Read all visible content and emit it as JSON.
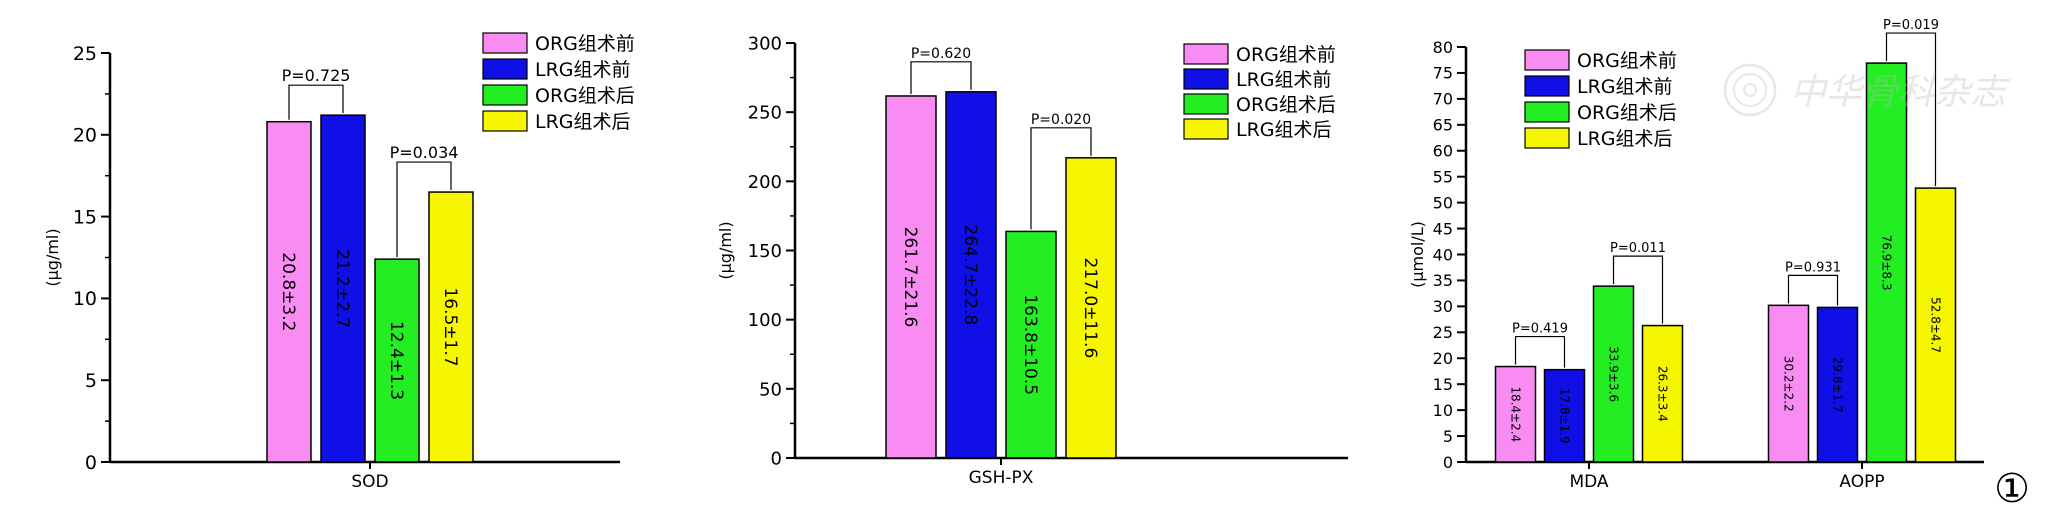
{
  "figure_label": "①",
  "watermark_text": "中华骨科杂志",
  "colors": {
    "ORG_pre": "#f98cf3",
    "LRG_pre": "#1010e6",
    "ORG_post": "#22ee22",
    "LRG_post": "#f6f600"
  },
  "chart_data": [
    {
      "type": "bar",
      "ylabel": "(μg/ml)",
      "ylim": [
        0,
        25
      ],
      "yticks": [
        0,
        5,
        10,
        15,
        20,
        25
      ],
      "categories": [
        "SOD"
      ],
      "legend": [
        "ORG组术前",
        "LRG组术前",
        "ORG组术后",
        "LRG组术后"
      ],
      "legend_position": "top-right",
      "series": [
        {
          "name": "ORG组术前",
          "values": [
            20.8
          ],
          "labels": [
            "20.8±3.2"
          ]
        },
        {
          "name": "LRG组术前",
          "values": [
            21.2
          ],
          "labels": [
            "21.2±2.7"
          ]
        },
        {
          "name": "ORG组术后",
          "values": [
            12.4
          ],
          "labels": [
            "12.4±1.3"
          ]
        },
        {
          "name": "LRG组术后",
          "values": [
            16.5
          ],
          "labels": [
            "16.5±1.7"
          ]
        }
      ],
      "comparisons": [
        {
          "category": 0,
          "from": 0,
          "to": 1,
          "label": "P=0.725"
        },
        {
          "category": 0,
          "from": 2,
          "to": 3,
          "label": "P=0.034"
        }
      ]
    },
    {
      "type": "bar",
      "ylabel": "(μg/ml)",
      "ylim": [
        0,
        300
      ],
      "yticks": [
        0,
        50,
        100,
        150,
        200,
        250,
        300
      ],
      "categories": [
        "GSH-PX"
      ],
      "legend": [
        "ORG组术前",
        "LRG组术前",
        "ORG组术后",
        "LRG组术后"
      ],
      "legend_position": "top-right",
      "series": [
        {
          "name": "ORG组术前",
          "values": [
            261.7
          ],
          "labels": [
            "261.7±21.6"
          ]
        },
        {
          "name": "LRG组术前",
          "values": [
            264.7
          ],
          "labels": [
            "264.7±22.8"
          ]
        },
        {
          "name": "ORG组术后",
          "values": [
            163.8
          ],
          "labels": [
            "163.8±10.5"
          ]
        },
        {
          "name": "LRG组术后",
          "values": [
            217.0
          ],
          "labels": [
            "217.0±11.6"
          ]
        }
      ],
      "comparisons": [
        {
          "category": 0,
          "from": 0,
          "to": 1,
          "label": "P=0.620"
        },
        {
          "category": 0,
          "from": 2,
          "to": 3,
          "label": "P=0.020"
        }
      ]
    },
    {
      "type": "bar",
      "ylabel": "(μmol/L)",
      "ylim": [
        0,
        80
      ],
      "yticks": [
        0,
        5,
        10,
        15,
        20,
        25,
        30,
        35,
        40,
        45,
        50,
        55,
        60,
        65,
        70,
        75,
        80
      ],
      "categories": [
        "MDA",
        "AOPP"
      ],
      "legend": [
        "ORG组术前",
        "LRG组术前",
        "ORG组术后",
        "LRG组术后"
      ],
      "legend_position": "top-left",
      "series": [
        {
          "name": "ORG组术前",
          "values": [
            18.4,
            30.2
          ],
          "labels": [
            "18.4±2.4",
            "30.2±2.2"
          ]
        },
        {
          "name": "LRG组术前",
          "values": [
            17.8,
            29.8
          ],
          "labels": [
            "17.8±1.9",
            "29.8±1.7"
          ]
        },
        {
          "name": "ORG组术后",
          "values": [
            33.9,
            76.9
          ],
          "labels": [
            "33.9±3.6",
            "76.9±8.3"
          ]
        },
        {
          "name": "LRG组术后",
          "values": [
            26.3,
            52.8
          ],
          "labels": [
            "26.3±3.4",
            "52.8±4.7"
          ]
        }
      ],
      "comparisons": [
        {
          "category": 0,
          "from": 0,
          "to": 1,
          "label": "P=0.419"
        },
        {
          "category": 0,
          "from": 2,
          "to": 3,
          "label": "P=0.011"
        },
        {
          "category": 1,
          "from": 0,
          "to": 1,
          "label": "P=0.931"
        },
        {
          "category": 1,
          "from": 2,
          "to": 3,
          "label": "P=0.019"
        }
      ]
    }
  ]
}
